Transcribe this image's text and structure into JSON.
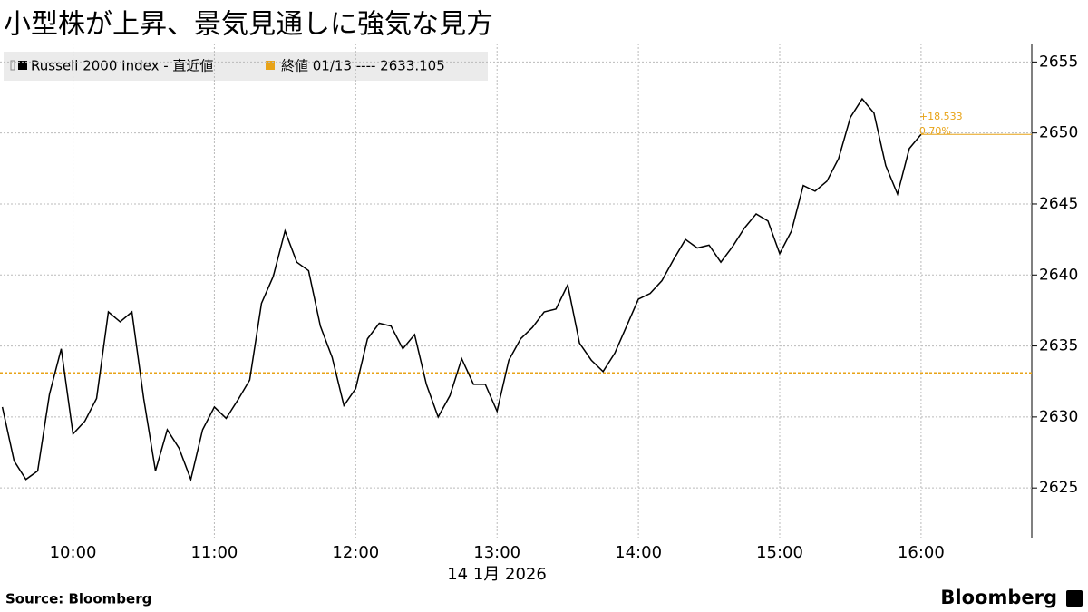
{
  "chart_data": {
    "type": "line",
    "title": "小型株が上昇、景気見通しに強気な見方",
    "x_label": "14 1月 2026",
    "source": "Source:  Bloomberg",
    "brand": "Bloomberg",
    "annotations": [
      "+18.533",
      "0.70%"
    ],
    "x": [
      570,
      575,
      580,
      585,
      590,
      595,
      600,
      605,
      610,
      615,
      620,
      625,
      630,
      635,
      640,
      645,
      650,
      655,
      660,
      665,
      670,
      675,
      680,
      685,
      690,
      695,
      700,
      705,
      710,
      715,
      720,
      725,
      730,
      735,
      740,
      745,
      750,
      755,
      760,
      765,
      770,
      775,
      780,
      785,
      790,
      795,
      800,
      805,
      810,
      815,
      820,
      825,
      830,
      835,
      840,
      845,
      850,
      855,
      860,
      865,
      870,
      875,
      880,
      885,
      890,
      895,
      900,
      905,
      910,
      915,
      920,
      925,
      930,
      935,
      940,
      945,
      950,
      955,
      960
    ],
    "series": [
      {
        "name": "Russell 2000 Index - 直近値",
        "color": "#000000",
        "values": [
          2630.7,
          2626.9,
          2625.6,
          2626.2,
          2631.6,
          2634.8,
          2628.8,
          2629.7,
          2631.3,
          2637.4,
          2636.7,
          2637.4,
          2631.3,
          2626.2,
          2629.1,
          2627.8,
          2625.6,
          2629.1,
          2630.7,
          2629.9,
          2631.2,
          2632.6,
          2638.0,
          2639.9,
          2643.1,
          2640.9,
          2640.3,
          2636.4,
          2634.2,
          2630.8,
          2632.0,
          2635.5,
          2636.6,
          2636.4,
          2634.8,
          2635.8,
          2632.3,
          2630.0,
          2631.5,
          2634.1,
          2632.3,
          2632.3,
          2630.4,
          2634.0,
          2635.5,
          2636.3,
          2637.4,
          2637.6,
          2639.3,
          2635.2,
          2634.0,
          2633.2,
          2634.5,
          2636.4,
          2638.3,
          2638.7,
          2639.6,
          2641.1,
          2642.5,
          2641.9,
          2642.1,
          2640.9,
          2642.0,
          2643.3,
          2644.3,
          2643.8,
          2641.5,
          2643.1,
          2646.3,
          2645.9,
          2646.6,
          2648.2,
          2651.1,
          2652.4,
          2651.4,
          2647.7,
          2645.7,
          2648.9,
          2649.9
        ]
      }
    ],
    "reference_line": {
      "name": "終値 01/13 ---- 2633.105",
      "value": 2633.105,
      "color": "#e8a317"
    },
    "xlim": [
      569,
      1007
    ],
    "xticks": [
      {
        "value": 600,
        "label": "10:00"
      },
      {
        "value": 660,
        "label": "11:00"
      },
      {
        "value": 720,
        "label": "12:00"
      },
      {
        "value": 780,
        "label": "13:00"
      },
      {
        "value": 840,
        "label": "14:00"
      },
      {
        "value": 900,
        "label": "15:00"
      },
      {
        "value": 960,
        "label": "16:00"
      }
    ],
    "ylim": [
      2621.5,
      2656.3
    ],
    "yticks": [
      2625,
      2630,
      2635,
      2640,
      2645,
      2650,
      2655
    ],
    "grid": true
  }
}
